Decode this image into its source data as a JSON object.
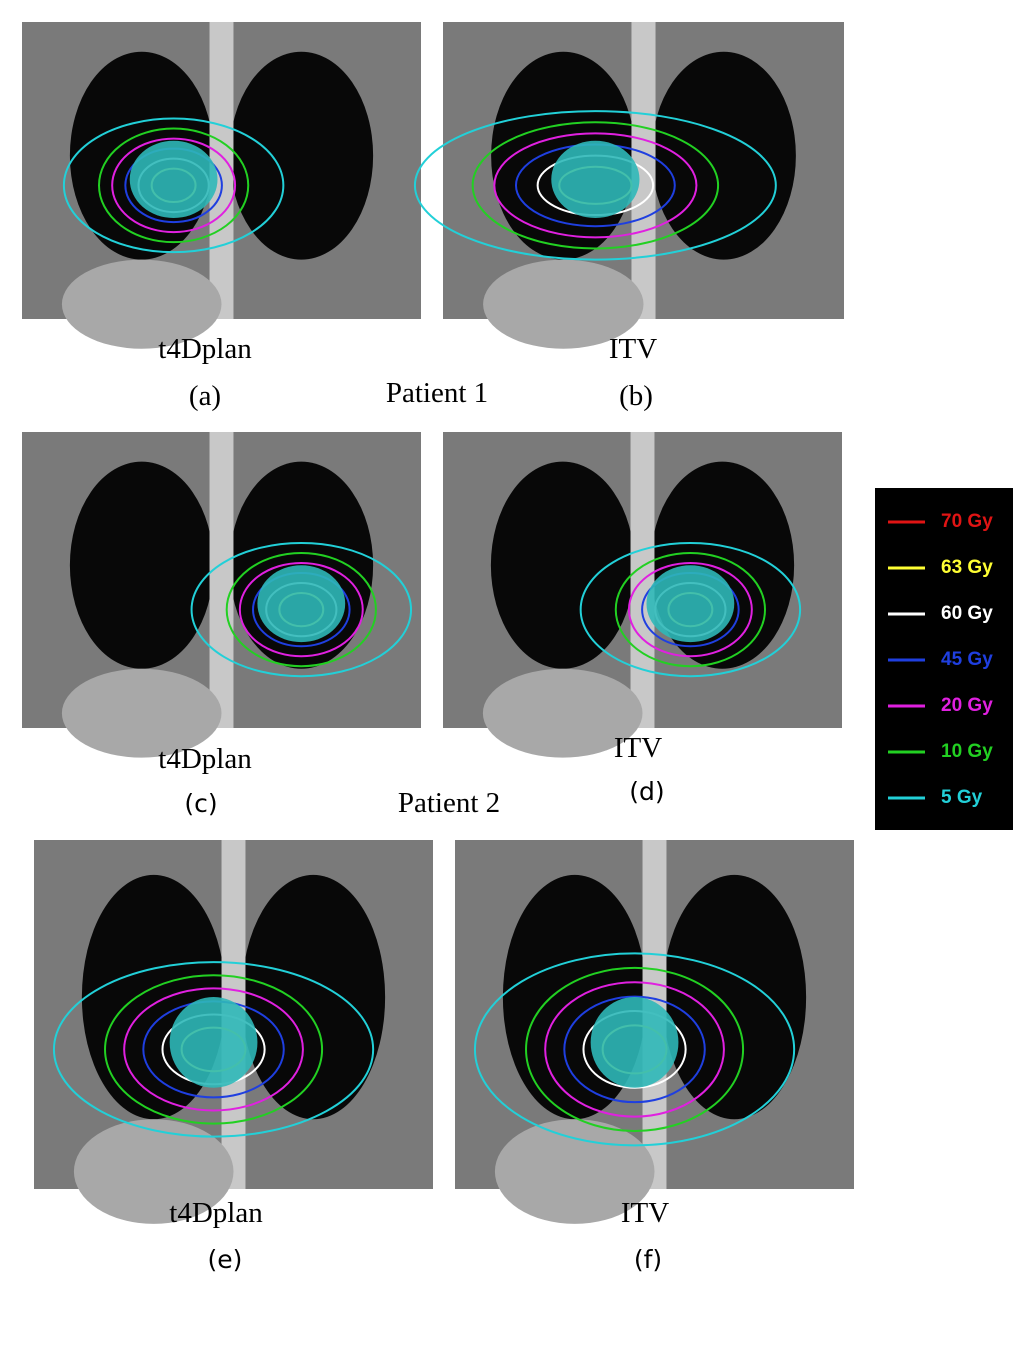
{
  "panels": [
    {
      "caption": "t4Dplan",
      "label": "(a)"
    },
    {
      "caption": "ITV",
      "label": "(b)"
    },
    {
      "caption": "t4Dplan",
      "label": "(c)"
    },
    {
      "caption": "ITV",
      "label": "(d)"
    },
    {
      "caption": "t4Dplan",
      "label": "(e)"
    },
    {
      "caption": "ITV",
      "label": "(f)"
    }
  ],
  "patients": [
    "Patient 1",
    "Patient 2"
  ],
  "legend": [
    {
      "label": "70 Gy",
      "color": "#e01414"
    },
    {
      "label": "63 Gy",
      "color": "#ffff33"
    },
    {
      "label": "60 Gy",
      "color": "#ffffff"
    },
    {
      "label": "45 Gy",
      "color": "#1f3fe0"
    },
    {
      "label": "20 Gy",
      "color": "#e020e0"
    },
    {
      "label": "10 Gy",
      "color": "#22d022"
    },
    {
      "label": "5 Gy",
      "color": "#22d0d8"
    }
  ]
}
